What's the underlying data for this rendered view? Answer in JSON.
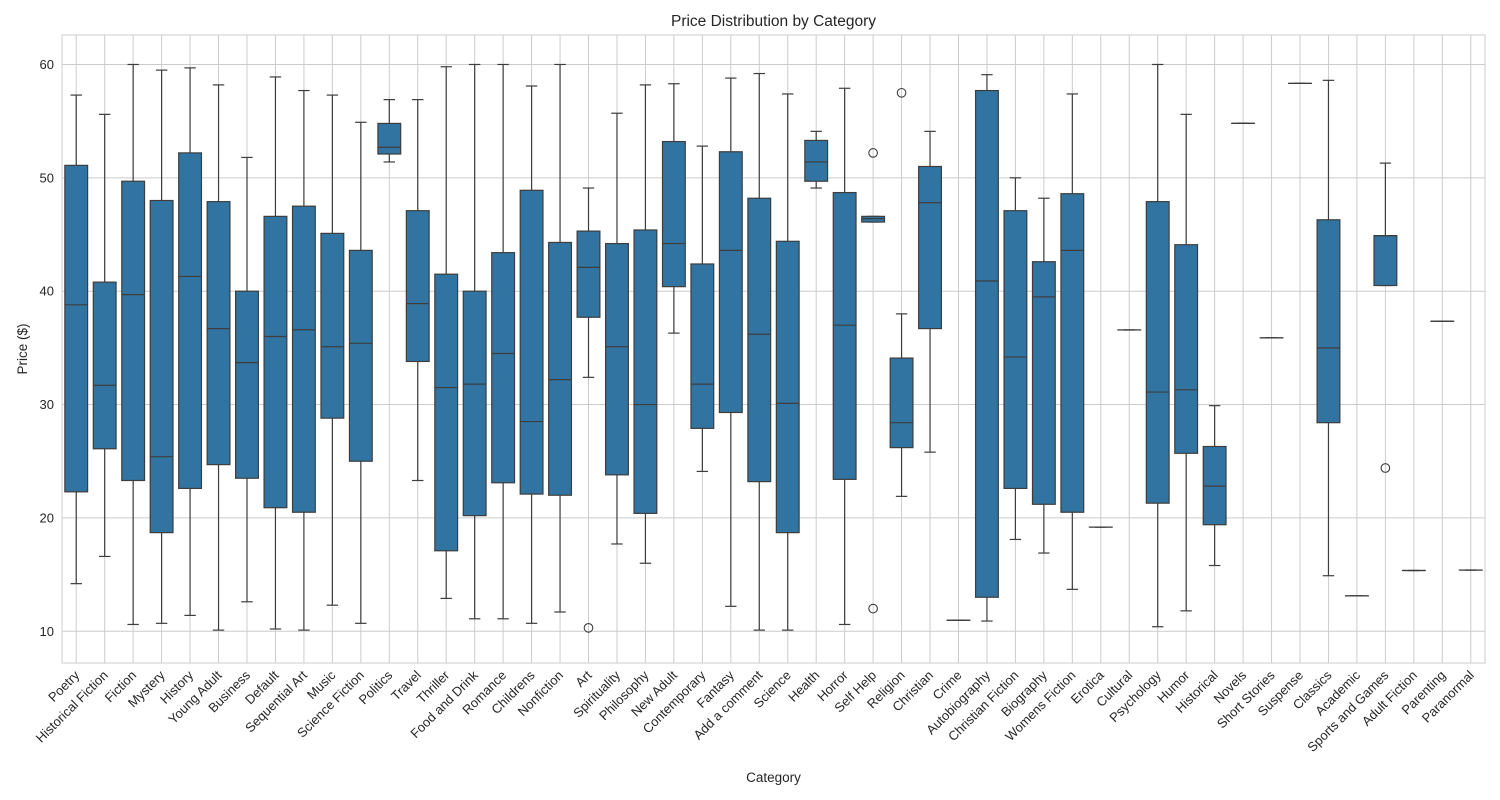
{
  "chart_data": {
    "type": "box",
    "title": "Price Distribution by Category",
    "xlabel": "Category",
    "ylabel": "Price ($)",
    "ylim": [
      7.2,
      62.6
    ],
    "yticks": [
      10,
      20,
      30,
      40,
      50,
      60
    ],
    "ytick_labels": [
      "10",
      "20",
      "30",
      "40",
      "50",
      "60"
    ],
    "grid": true,
    "box_color": "#3274a1",
    "line_color": "#3d3d3d",
    "grid_color": "#cccccc",
    "categories": [
      "Poetry",
      "Historical Fiction",
      "Fiction",
      "Mystery",
      "History",
      "Young Adult",
      "Business",
      "Default",
      "Sequential Art",
      "Music",
      "Science Fiction",
      "Politics",
      "Travel",
      "Thriller",
      "Food and Drink",
      "Romance",
      "Childrens",
      "Nonfiction",
      "Art",
      "Spirituality",
      "Philosophy",
      "New Adult",
      "Contemporary",
      "Fantasy",
      "Add a comment",
      "Science",
      "Health",
      "Horror",
      "Self Help",
      "Religion",
      "Christian",
      "Crime",
      "Autobiography",
      "Christian Fiction",
      "Biography",
      "Womens Fiction",
      "Erotica",
      "Cultural",
      "Psychology",
      "Humor",
      "Historical",
      "Novels",
      "Short Stories",
      "Suspense",
      "Classics",
      "Academic",
      "Sports and Games",
      "Adult Fiction",
      "Parenting",
      "Paranormal"
    ],
    "boxes": [
      {
        "category": "Poetry",
        "whisker_low": 14.2,
        "q1": 22.3,
        "median": 38.8,
        "q3": 51.1,
        "whisker_high": 57.3,
        "outliers": []
      },
      {
        "category": "Historical Fiction",
        "whisker_low": 16.6,
        "q1": 26.1,
        "median": 31.7,
        "q3": 40.8,
        "whisker_high": 55.6,
        "outliers": []
      },
      {
        "category": "Fiction",
        "whisker_low": 10.6,
        "q1": 23.3,
        "median": 39.7,
        "q3": 49.7,
        "whisker_high": 60.0,
        "outliers": []
      },
      {
        "category": "Mystery",
        "whisker_low": 10.7,
        "q1": 18.7,
        "median": 25.4,
        "q3": 48.0,
        "whisker_high": 59.5,
        "outliers": []
      },
      {
        "category": "History",
        "whisker_low": 11.4,
        "q1": 22.6,
        "median": 41.3,
        "q3": 52.2,
        "whisker_high": 59.7,
        "outliers": []
      },
      {
        "category": "Young Adult",
        "whisker_low": 10.1,
        "q1": 24.7,
        "median": 36.7,
        "q3": 47.9,
        "whisker_high": 58.2,
        "outliers": []
      },
      {
        "category": "Business",
        "whisker_low": 12.6,
        "q1": 23.5,
        "median": 33.7,
        "q3": 40.0,
        "whisker_high": 51.8,
        "outliers": []
      },
      {
        "category": "Default",
        "whisker_low": 10.2,
        "q1": 20.9,
        "median": 36.0,
        "q3": 46.6,
        "whisker_high": 58.9,
        "outliers": []
      },
      {
        "category": "Sequential Art",
        "whisker_low": 10.1,
        "q1": 20.5,
        "median": 36.6,
        "q3": 47.5,
        "whisker_high": 57.7,
        "outliers": []
      },
      {
        "category": "Music",
        "whisker_low": 12.3,
        "q1": 28.8,
        "median": 35.1,
        "q3": 45.1,
        "whisker_high": 57.3,
        "outliers": []
      },
      {
        "category": "Science Fiction",
        "whisker_low": 10.7,
        "q1": 25.0,
        "median": 35.4,
        "q3": 43.6,
        "whisker_high": 54.9,
        "outliers": []
      },
      {
        "category": "Politics",
        "whisker_low": 51.4,
        "q1": 52.1,
        "median": 52.7,
        "q3": 54.8,
        "whisker_high": 56.9,
        "outliers": []
      },
      {
        "category": "Travel",
        "whisker_low": 23.3,
        "q1": 33.8,
        "median": 38.9,
        "q3": 47.1,
        "whisker_high": 56.9,
        "outliers": []
      },
      {
        "category": "Thriller",
        "whisker_low": 12.9,
        "q1": 17.1,
        "median": 31.5,
        "q3": 41.5,
        "whisker_high": 59.8,
        "outliers": []
      },
      {
        "category": "Food and Drink",
        "whisker_low": 11.1,
        "q1": 20.2,
        "median": 31.8,
        "q3": 40.0,
        "whisker_high": 60.0,
        "outliers": []
      },
      {
        "category": "Romance",
        "whisker_low": 11.1,
        "q1": 23.1,
        "median": 34.5,
        "q3": 43.4,
        "whisker_high": 60.0,
        "outliers": []
      },
      {
        "category": "Childrens",
        "whisker_low": 10.7,
        "q1": 22.1,
        "median": 28.5,
        "q3": 48.9,
        "whisker_high": 58.1,
        "outliers": []
      },
      {
        "category": "Nonfiction",
        "whisker_low": 11.7,
        "q1": 22.0,
        "median": 32.2,
        "q3": 44.3,
        "whisker_high": 60.0,
        "outliers": []
      },
      {
        "category": "Art",
        "whisker_low": 32.4,
        "q1": 37.7,
        "median": 42.1,
        "q3": 45.3,
        "whisker_high": 49.1,
        "outliers": [
          10.3
        ]
      },
      {
        "category": "Spirituality",
        "whisker_low": 17.7,
        "q1": 23.8,
        "median": 35.1,
        "q3": 44.2,
        "whisker_high": 55.7,
        "outliers": []
      },
      {
        "category": "Philosophy",
        "whisker_low": 16.0,
        "q1": 20.4,
        "median": 30.0,
        "q3": 45.4,
        "whisker_high": 58.2,
        "outliers": []
      },
      {
        "category": "New Adult",
        "whisker_low": 36.3,
        "q1": 40.4,
        "median": 44.2,
        "q3": 53.2,
        "whisker_high": 58.3,
        "outliers": []
      },
      {
        "category": "Contemporary",
        "whisker_low": 24.1,
        "q1": 27.9,
        "median": 31.8,
        "q3": 42.4,
        "whisker_high": 52.8,
        "outliers": []
      },
      {
        "category": "Fantasy",
        "whisker_low": 12.2,
        "q1": 29.3,
        "median": 43.6,
        "q3": 52.3,
        "whisker_high": 58.8,
        "outliers": []
      },
      {
        "category": "Add a comment",
        "whisker_low": 10.1,
        "q1": 23.2,
        "median": 36.2,
        "q3": 48.2,
        "whisker_high": 59.2,
        "outliers": []
      },
      {
        "category": "Science",
        "whisker_low": 10.1,
        "q1": 18.7,
        "median": 30.1,
        "q3": 44.4,
        "whisker_high": 57.4,
        "outliers": []
      },
      {
        "category": "Health",
        "whisker_low": 49.1,
        "q1": 49.7,
        "median": 51.4,
        "q3": 53.3,
        "whisker_high": 54.1,
        "outliers": []
      },
      {
        "category": "Horror",
        "whisker_low": 10.6,
        "q1": 23.4,
        "median": 37.0,
        "q3": 48.7,
        "whisker_high": 57.9,
        "outliers": []
      },
      {
        "category": "Self Help",
        "whisker_low": 46.1,
        "q1": 46.1,
        "median": 46.4,
        "q3": 46.6,
        "whisker_high": 46.6,
        "outliers": [
          52.2,
          12.0
        ]
      },
      {
        "category": "Religion",
        "whisker_low": 21.9,
        "q1": 26.2,
        "median": 28.4,
        "q3": 34.1,
        "whisker_high": 38.0,
        "outliers": [
          57.5
        ]
      },
      {
        "category": "Christian",
        "whisker_low": 25.8,
        "q1": 36.7,
        "median": 47.8,
        "q3": 51.0,
        "whisker_high": 54.1,
        "outliers": []
      },
      {
        "category": "Crime",
        "whisker_low": 10.97,
        "q1": 10.97,
        "median": 10.97,
        "q3": 10.97,
        "whisker_high": 10.97,
        "outliers": []
      },
      {
        "category": "Autobiography",
        "whisker_low": 10.9,
        "q1": 13.0,
        "median": 40.9,
        "q3": 57.7,
        "whisker_high": 59.1,
        "outliers": []
      },
      {
        "category": "Christian Fiction",
        "whisker_low": 18.1,
        "q1": 22.6,
        "median": 34.2,
        "q3": 47.1,
        "whisker_high": 50.0,
        "outliers": []
      },
      {
        "category": "Biography",
        "whisker_low": 16.9,
        "q1": 21.2,
        "median": 39.5,
        "q3": 42.6,
        "whisker_high": 48.2,
        "outliers": []
      },
      {
        "category": "Womens Fiction",
        "whisker_low": 13.7,
        "q1": 20.5,
        "median": 43.6,
        "q3": 48.6,
        "whisker_high": 57.4,
        "outliers": []
      },
      {
        "category": "Erotica",
        "whisker_low": 19.19,
        "q1": 19.19,
        "median": 19.19,
        "q3": 19.19,
        "whisker_high": 19.19,
        "outliers": []
      },
      {
        "category": "Cultural",
        "whisker_low": 36.58,
        "q1": 36.58,
        "median": 36.58,
        "q3": 36.58,
        "whisker_high": 36.58,
        "outliers": []
      },
      {
        "category": "Psychology",
        "whisker_low": 10.4,
        "q1": 21.3,
        "median": 31.1,
        "q3": 47.9,
        "whisker_high": 60.0,
        "outliers": []
      },
      {
        "category": "Humor",
        "whisker_low": 11.8,
        "q1": 25.7,
        "median": 31.3,
        "q3": 44.1,
        "whisker_high": 55.6,
        "outliers": []
      },
      {
        "category": "Historical",
        "whisker_low": 15.8,
        "q1": 19.4,
        "median": 22.8,
        "q3": 26.3,
        "whisker_high": 29.9,
        "outliers": []
      },
      {
        "category": "Novels",
        "whisker_low": 54.81,
        "q1": 54.81,
        "median": 54.81,
        "q3": 54.81,
        "whisker_high": 54.81,
        "outliers": []
      },
      {
        "category": "Short Stories",
        "whisker_low": 35.88,
        "q1": 35.88,
        "median": 35.88,
        "q3": 35.88,
        "whisker_high": 35.88,
        "outliers": []
      },
      {
        "category": "Suspense",
        "whisker_low": 58.33,
        "q1": 58.33,
        "median": 58.33,
        "q3": 58.33,
        "whisker_high": 58.33,
        "outliers": []
      },
      {
        "category": "Classics",
        "whisker_low": 14.9,
        "q1": 28.4,
        "median": 35.0,
        "q3": 46.3,
        "whisker_high": 58.6,
        "outliers": []
      },
      {
        "category": "Academic",
        "whisker_low": 13.12,
        "q1": 13.12,
        "median": 13.12,
        "q3": 13.12,
        "whisker_high": 13.12,
        "outliers": []
      },
      {
        "category": "Sports and Games",
        "whisker_low": 40.5,
        "q1": 40.5,
        "median": 44.9,
        "q3": 44.9,
        "whisker_high": 51.3,
        "outliers": [
          24.4
        ]
      },
      {
        "category": "Adult Fiction",
        "whisker_low": 15.36,
        "q1": 15.36,
        "median": 15.36,
        "q3": 15.36,
        "whisker_high": 15.36,
        "outliers": []
      },
      {
        "category": "Parenting",
        "whisker_low": 37.35,
        "q1": 37.35,
        "median": 37.35,
        "q3": 37.35,
        "whisker_high": 37.35,
        "outliers": []
      },
      {
        "category": "Paranormal",
        "whisker_low": 15.4,
        "q1": 15.4,
        "median": 15.4,
        "q3": 15.4,
        "whisker_high": 15.4,
        "outliers": []
      }
    ]
  }
}
